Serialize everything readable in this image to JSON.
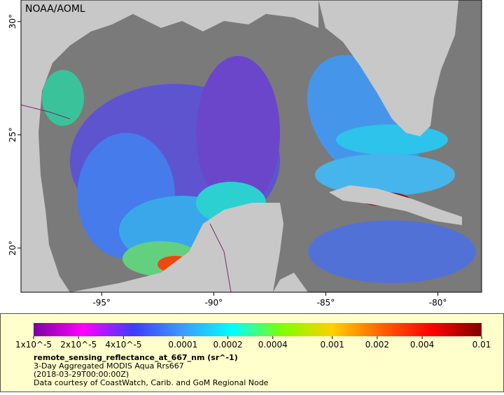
{
  "map": {
    "credit": "NOAA/AOML",
    "lonlim": [
      -98.6,
      -78.05
    ],
    "latlim": [
      18.05,
      30.95
    ],
    "lon_ticks": [
      {
        "value": -95,
        "label": "-95°"
      },
      {
        "value": -90,
        "label": "-90°"
      },
      {
        "value": -85,
        "label": "-85°"
      },
      {
        "value": -80,
        "label": "-80°"
      }
    ],
    "lat_ticks": [
      {
        "value": 30,
        "label": "30°"
      },
      {
        "value": 25,
        "label": "25°"
      },
      {
        "value": 20,
        "label": "20°"
      }
    ]
  },
  "colorbar": {
    "scale": "log",
    "lim": [
      1e-05,
      0.01
    ],
    "colors": [
      "#7a00a0",
      "#ff00ff",
      "#3c3cff",
      "#3c9cff",
      "#00ffff",
      "#80ff00",
      "#ffd000",
      "#ff6000",
      "#ff0000",
      "#800000"
    ],
    "ticks": [
      {
        "value": 1e-05,
        "label": "1x10^-5"
      },
      {
        "value": 2e-05,
        "label": "2x10^-5"
      },
      {
        "value": 4e-05,
        "label": "4x10^-5"
      },
      0.0001,
      0.0002,
      0.0004,
      0.001,
      0.002,
      0.004,
      0.01
    ]
  },
  "caption": {
    "variable": "remote_sensing_reflectance_at_667_nm (sr^-1)",
    "product": "3-Day Aggregated MODIS Aqua Rrs667",
    "time": "(2018-03-29T00:00:00Z)",
    "credit": "Data courtesy of CoastWatch, Carib. and GoM Regional Node"
  }
}
